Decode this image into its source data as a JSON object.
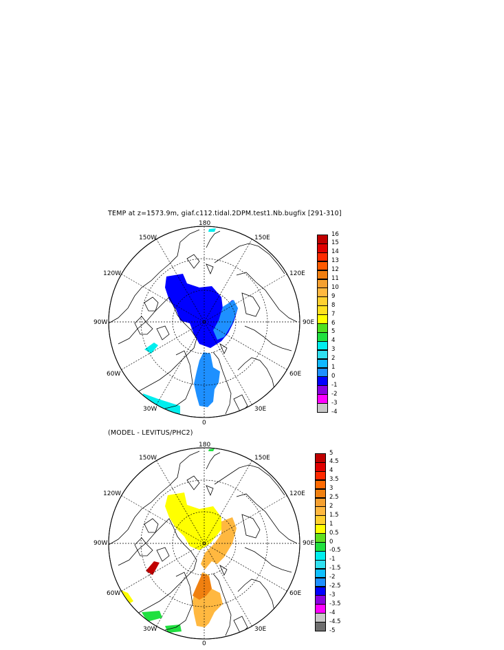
{
  "top_panel": {
    "title": "TEMP at z=1573.9m, giaf.c112.tidal.2DPM.test1.Nb.bugfix [291-310]",
    "lon_labels": {
      "n": "180",
      "nw150": "150W",
      "ne150": "150E",
      "w120": "120W",
      "e120": "120E",
      "w90": "90W",
      "e90": "90E",
      "w60": "60W",
      "e60": "60E",
      "w30": "30W",
      "e30": "30E",
      "s": "0"
    },
    "colorbar": {
      "levels": [
        "16",
        "15",
        "14",
        "13",
        "12",
        "11",
        "10",
        "9",
        "8",
        "7",
        "6",
        "5",
        "4",
        "3",
        "2",
        "1",
        "0",
        "-1",
        "-2",
        "-3",
        "-4"
      ],
      "colors": [
        "#c00000",
        "#e00000",
        "#ff2a00",
        "#ff5a00",
        "#f07e10",
        "#f5a030",
        "#ffb840",
        "#ffd030",
        "#ffe020",
        "#ffff00",
        "#50e020",
        "#20e040",
        "#00eeee",
        "#30e0f0",
        "#10b8ff",
        "#1e90ff",
        "#0000ff",
        "#8a00e0",
        "#ff00ff",
        "#c8c8c8"
      ]
    }
  },
  "bottom_panel": {
    "title": "(MODEL - LEVITUS/PHC2)",
    "lon_labels": {
      "n": "180",
      "nw150": "150W",
      "ne150": "150E",
      "w120": "120W",
      "e120": "120E",
      "w90": "90W",
      "e90": "90E",
      "w60": "60W",
      "e60": "60E",
      "w30": "30W",
      "e30": "30E",
      "s": "0"
    },
    "colorbar": {
      "levels": [
        "5",
        "4.5",
        "4",
        "3.5",
        "3",
        "2.5",
        "2",
        "1.5",
        "1",
        "0.5",
        "0",
        "-0.5",
        "-1",
        "-1.5",
        "-2",
        "-2.5",
        "-3",
        "-3.5",
        "-4",
        "-4.5",
        "-5"
      ],
      "colors": [
        "#c00000",
        "#e00000",
        "#ff2a00",
        "#ff6a00",
        "#f08010",
        "#f5a030",
        "#ffb840",
        "#ffd030",
        "#ffff00",
        "#60e020",
        "#20e040",
        "#00eeee",
        "#30e0f0",
        "#10c0ff",
        "#1e90ff",
        "#0000ff",
        "#8a00e0",
        "#ff00ff",
        "#c8c8c8",
        "#6e6e6e"
      ]
    }
  }
}
